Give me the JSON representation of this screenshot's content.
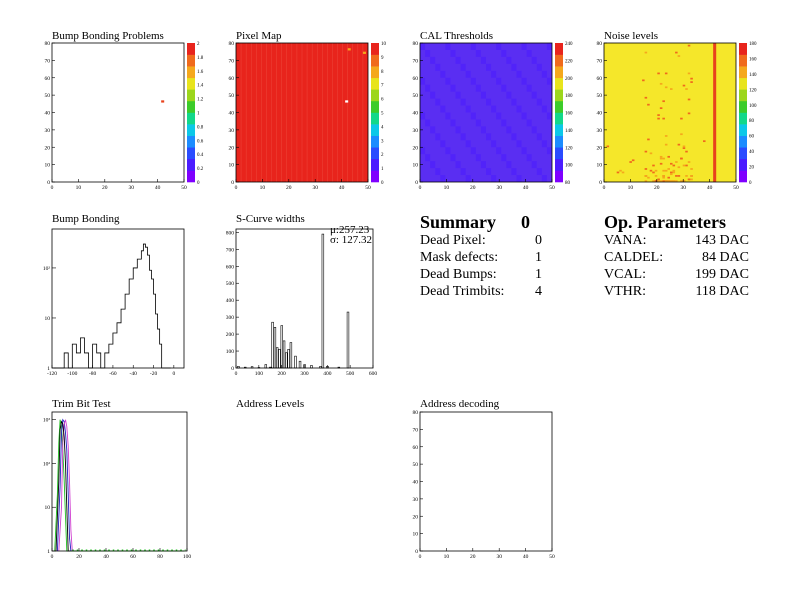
{
  "panels": {
    "bump_problems": {
      "title": "Bump Bonding Problems"
    },
    "pixel_map": {
      "title": "Pixel Map"
    },
    "cal_thresholds": {
      "title": "CAL Thresholds"
    },
    "noise_levels": {
      "title": "Noise levels"
    },
    "bump_bonding": {
      "title": "Bump Bonding"
    },
    "scurve_widths": {
      "title": "S-Curve widths",
      "stat_mu": "μ:257.23",
      "stat_sigma": "σ: 127.32"
    },
    "trim_bit_test": {
      "title": "Trim Bit Test"
    },
    "address_levels": {
      "title": "Address Levels"
    },
    "address_decoding": {
      "title": "Address decoding"
    }
  },
  "summary": {
    "title": "Summary",
    "count": "0",
    "rows": [
      {
        "label": "Dead Pixel:",
        "value": "0"
      },
      {
        "label": "Mask defects:",
        "value": "1"
      },
      {
        "label": "Dead Bumps:",
        "value": "1"
      },
      {
        "label": "Dead Trimbits:",
        "value": "4"
      }
    ]
  },
  "op_parameters": {
    "title": "Op. Parameters",
    "rows": [
      {
        "label": "VANA:",
        "value": "143 DAC"
      },
      {
        "label": "CALDEL:",
        "value": "84 DAC"
      },
      {
        "label": "VCAL:",
        "value": "199 DAC"
      },
      {
        "label": "VTHR:",
        "value": "118 DAC"
      }
    ]
  },
  "colors": {
    "pixel_map_fill": "#e8241c",
    "cal_fill": "#5a2ef2",
    "noise_fill": "#f5e72a",
    "noise_hot": "#e8421c"
  },
  "chart_data": [
    {
      "id": "bump_problems",
      "type": "heatmap",
      "title": "Bump Bonding Problems",
      "xlim": [
        0,
        52
      ],
      "ylim": [
        0,
        80
      ],
      "xticks": [
        "0",
        "10",
        "20",
        "30",
        "40",
        "50"
      ],
      "yticks": [
        "0",
        "10",
        "20",
        "30",
        "40",
        "50",
        "60",
        "70",
        "80"
      ],
      "zticks": [
        "0",
        "0.2",
        "0.4",
        "0.6",
        "0.8",
        "1",
        "1.2",
        "1.4",
        "1.6",
        "1.8",
        "2"
      ],
      "cells": [
        {
          "x": 43,
          "y": 46,
          "z": 2
        }
      ]
    },
    {
      "id": "pixel_map",
      "type": "heatmap",
      "title": "Pixel Map",
      "xlim": [
        0,
        52
      ],
      "ylim": [
        0,
        80
      ],
      "xticks": [
        "0",
        "10",
        "20",
        "30",
        "40",
        "50"
      ],
      "yticks": [
        "0",
        "10",
        "20",
        "30",
        "40",
        "50",
        "60",
        "70",
        "80"
      ],
      "zticks": [
        "0",
        "1",
        "2",
        "3",
        "4",
        "5",
        "6",
        "7",
        "8",
        "9",
        "10"
      ],
      "uniform_value": 9,
      "cells": [
        {
          "x": 43,
          "y": 46,
          "z": 0
        },
        {
          "x": 44,
          "y": 76,
          "z": 8
        },
        {
          "x": 50,
          "y": 74,
          "z": 8
        }
      ]
    },
    {
      "id": "cal_thresholds",
      "type": "heatmap",
      "title": "CAL Thresholds",
      "xlim": [
        0,
        52
      ],
      "ylim": [
        0,
        80
      ],
      "xticks": [
        "0",
        "10",
        "20",
        "30",
        "40",
        "50"
      ],
      "yticks": [
        "0",
        "10",
        "20",
        "30",
        "40",
        "50",
        "60",
        "70",
        "80"
      ],
      "zticks": [
        "80",
        "100",
        "120",
        "140",
        "160",
        "180",
        "200",
        "220",
        "240"
      ]
    },
    {
      "id": "noise_levels",
      "type": "heatmap",
      "title": "Noise levels",
      "xlim": [
        0,
        52
      ],
      "ylim": [
        0,
        80
      ],
      "xticks": [
        "0",
        "10",
        "20",
        "30",
        "40",
        "50"
      ],
      "yticks": [
        "0",
        "10",
        "20",
        "30",
        "40",
        "50",
        "60",
        "70",
        "80"
      ],
      "zticks": [
        "0",
        "20",
        "40",
        "60",
        "80",
        "100",
        "120",
        "140",
        "160",
        "180"
      ],
      "hot_column_x": 43
    },
    {
      "id": "bump_bonding",
      "type": "line",
      "title": "Bump Bonding",
      "xlim": [
        -120,
        10
      ],
      "ylog": true,
      "ylim": [
        1,
        600
      ],
      "xticks": [
        "-120",
        "-100",
        "-80",
        "-60",
        "-40",
        "-20",
        "0"
      ],
      "yticks": [
        "1",
        "10",
        "10²"
      ],
      "x": [
        -118,
        -112,
        -108,
        -104,
        -100,
        -96,
        -92,
        -88,
        -84,
        -80,
        -76,
        -72,
        -68,
        -64,
        -60,
        -56,
        -52,
        -48,
        -44,
        -40,
        -36,
        -32,
        -30,
        -28,
        -26,
        -24,
        -22,
        -20,
        -18,
        -16,
        -14,
        -12,
        -10,
        -8,
        -6
      ],
      "y": [
        1,
        1,
        2,
        1,
        3,
        2,
        4,
        2,
        1,
        3,
        2,
        1,
        2,
        3,
        5,
        8,
        15,
        30,
        60,
        100,
        150,
        220,
        300,
        260,
        180,
        90,
        60,
        30,
        12,
        6,
        3,
        1,
        1,
        1,
        1
      ]
    },
    {
      "id": "scurve_widths",
      "type": "bar",
      "title": "S-Curve widths",
      "xlim": [
        0,
        600
      ],
      "ylim": [
        0,
        820
      ],
      "xticks": [
        "0",
        "100",
        "200",
        "300",
        "400",
        "500",
        "600"
      ],
      "yticks": [
        "0",
        "100",
        "200",
        "300",
        "400",
        "500",
        "600",
        "700",
        "800"
      ],
      "x": [
        10,
        40,
        70,
        100,
        130,
        150,
        160,
        170,
        180,
        190,
        200,
        210,
        220,
        230,
        240,
        260,
        280,
        300,
        330,
        370,
        380,
        400,
        450,
        490
      ],
      "y": [
        10,
        5,
        8,
        3,
        20,
        5,
        270,
        240,
        120,
        110,
        250,
        160,
        90,
        110,
        150,
        70,
        40,
        20,
        15,
        10,
        790,
        10,
        5,
        330
      ],
      "stats": {
        "mu": "μ:257.23",
        "sigma": "σ: 127.32"
      }
    },
    {
      "id": "trim_bit_test",
      "type": "line",
      "title": "Trim Bit Test",
      "xlim": [
        0,
        100
      ],
      "ylog": true,
      "ylim": [
        1,
        1500
      ],
      "xticks": [
        "0",
        "20",
        "40",
        "60",
        "80",
        "100"
      ],
      "yticks": [
        "1",
        "10",
        "10²",
        "10³"
      ],
      "series": [
        {
          "color": "#22c022",
          "x": [
            2,
            4,
            5,
            6,
            7,
            8,
            9,
            10,
            11,
            12,
            14,
            20,
            30,
            40,
            50,
            60,
            70,
            80,
            90,
            98
          ],
          "y": [
            1,
            20,
            300,
            1000,
            700,
            200,
            40,
            6,
            1,
            1,
            1,
            1,
            1,
            1,
            1,
            1,
            1,
            1,
            1,
            1
          ]
        },
        {
          "color": "#2020c0",
          "x": [
            4,
            6,
            7,
            8,
            9,
            10,
            11,
            12,
            13,
            14
          ],
          "y": [
            1,
            30,
            500,
            1000,
            900,
            500,
            200,
            20,
            2,
            1
          ]
        },
        {
          "color": "#d040d0",
          "x": [
            5,
            7,
            8,
            9,
            10,
            11,
            12,
            13,
            14,
            15
          ],
          "y": [
            1,
            10,
            300,
            800,
            1000,
            700,
            250,
            40,
            3,
            1
          ]
        },
        {
          "color": "#000000",
          "x": [
            3,
            5,
            6,
            7,
            8,
            9,
            10,
            11,
            12,
            13
          ],
          "y": [
            1,
            40,
            600,
            900,
            800,
            400,
            100,
            10,
            1,
            1
          ]
        }
      ]
    },
    {
      "id": "address_decoding",
      "type": "heatmap",
      "title": "Address decoding",
      "xlim": [
        0,
        52
      ],
      "ylim": [
        0,
        80
      ],
      "xticks": [
        "0",
        "10",
        "20",
        "30",
        "40",
        "50"
      ],
      "yticks": [
        "0",
        "10",
        "20",
        "30",
        "40",
        "50",
        "60",
        "70",
        "80"
      ]
    }
  ]
}
